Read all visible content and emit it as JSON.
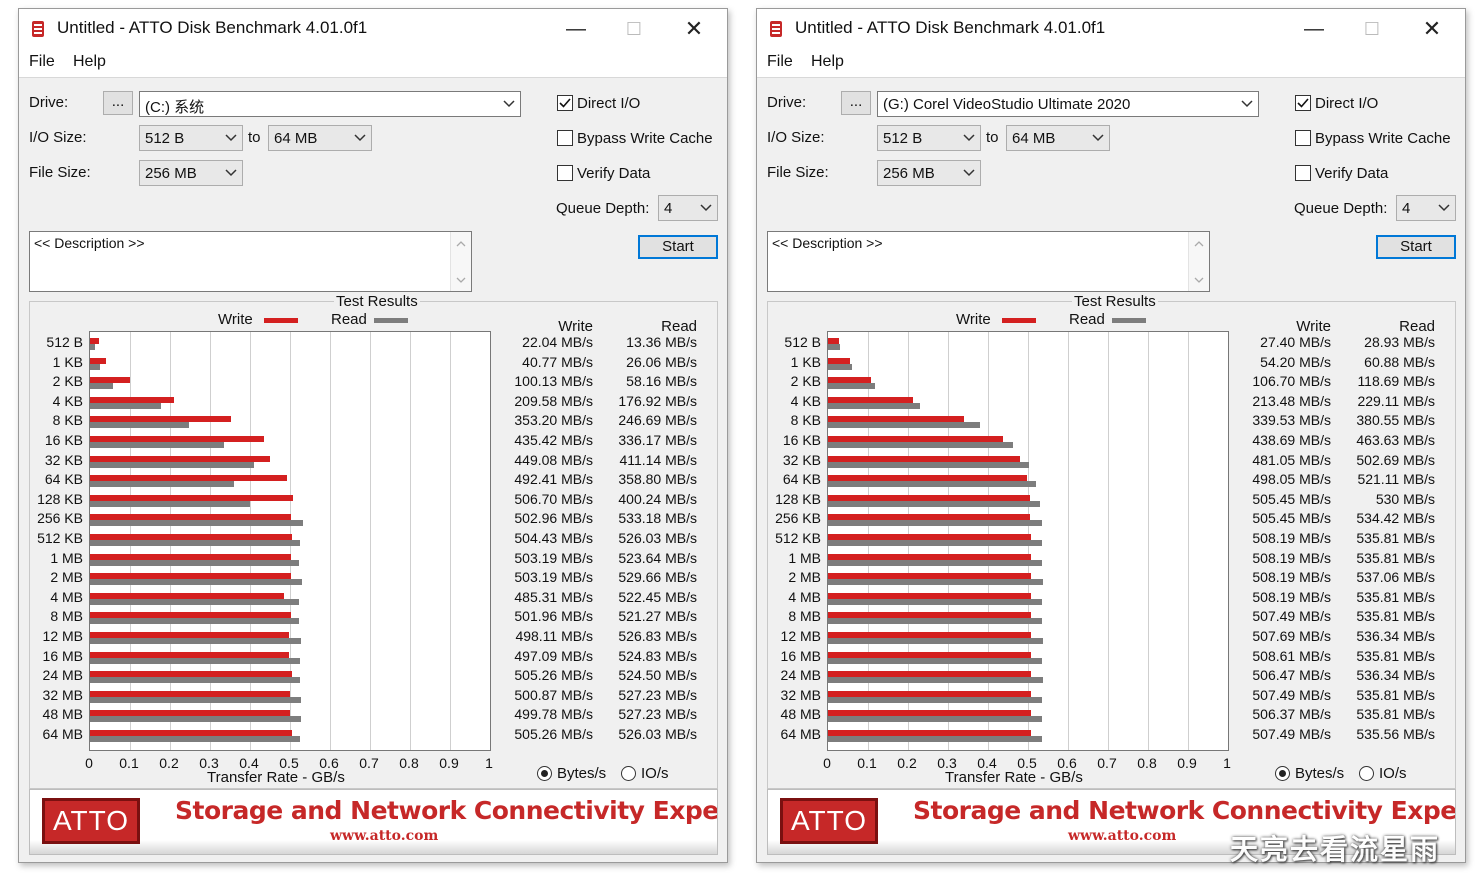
{
  "windows": [
    {
      "id": "left",
      "title": "Untitled - ATTO Disk Benchmark 4.01.0f1",
      "menu": [
        "File",
        "Help"
      ],
      "drive_label": "Drive:",
      "browse_label": "...",
      "drive_value": "(C:) 系统",
      "io_size_label": "I/O Size:",
      "io_from": "512 B",
      "to_label": "to",
      "io_to": "64 MB",
      "file_size_label": "File Size:",
      "file_size": "256 MB",
      "direct_io": "Direct I/O",
      "bypass_cache": "Bypass Write Cache",
      "verify_data": "Verify Data",
      "queue_depth_label": "Queue Depth:",
      "queue_depth": "4",
      "description": "<< Description >>",
      "start_label": "Start",
      "results_title": "Test Results",
      "legend_write": "Write",
      "legend_read": "Read",
      "col_write": "Write",
      "col_read": "Read",
      "x_label": "Transfer Rate - GB/s",
      "radio_bytes": "Bytes/s",
      "radio_io": "IO/s",
      "banner_logo": "ATTO",
      "banner_slogan": "Storage and Network Connectivity Experts",
      "banner_url": "www.atto.com",
      "chart_data": {
        "type": "bar",
        "orientation": "horizontal",
        "title": "Test Results",
        "xlabel": "Transfer Rate - GB/s",
        "xlim": [
          0,
          1
        ],
        "xticks": [
          "0",
          "0.1",
          "0.2",
          "0.3",
          "0.4",
          "0.5",
          "0.6",
          "0.7",
          "0.8",
          "0.9",
          "1"
        ],
        "categories": [
          "512 B",
          "1 KB",
          "2 KB",
          "4 KB",
          "8 KB",
          "16 KB",
          "32 KB",
          "64 KB",
          "128 KB",
          "256 KB",
          "512 KB",
          "1 MB",
          "2 MB",
          "4 MB",
          "8 MB",
          "12 MB",
          "16 MB",
          "24 MB",
          "32 MB",
          "48 MB",
          "64 MB"
        ],
        "series": [
          {
            "name": "Write",
            "color": "#d42020",
            "values_mbs": [
              22.04,
              40.77,
              100.13,
              209.58,
              353.2,
              435.42,
              449.08,
              492.41,
              506.7,
              502.96,
              504.43,
              503.19,
              503.19,
              485.31,
              501.96,
              498.11,
              497.09,
              505.26,
              500.87,
              499.78,
              505.26
            ]
          },
          {
            "name": "Read",
            "color": "#7d7d7d",
            "values_mbs": [
              13.36,
              26.06,
              58.16,
              176.92,
              246.69,
              336.17,
              411.14,
              358.8,
              400.24,
              533.18,
              526.03,
              523.64,
              529.66,
              522.45,
              521.27,
              526.83,
              524.83,
              524.5,
              527.23,
              527.23,
              526.03
            ]
          }
        ],
        "write_labels": [
          "22.04 MB/s",
          "40.77 MB/s",
          "100.13 MB/s",
          "209.58 MB/s",
          "353.20 MB/s",
          "435.42 MB/s",
          "449.08 MB/s",
          "492.41 MB/s",
          "506.70 MB/s",
          "502.96 MB/s",
          "504.43 MB/s",
          "503.19 MB/s",
          "503.19 MB/s",
          "485.31 MB/s",
          "501.96 MB/s",
          "498.11 MB/s",
          "497.09 MB/s",
          "505.26 MB/s",
          "500.87 MB/s",
          "499.78 MB/s",
          "505.26 MB/s"
        ],
        "read_labels": [
          "13.36 MB/s",
          "26.06 MB/s",
          "58.16 MB/s",
          "176.92 MB/s",
          "246.69 MB/s",
          "336.17 MB/s",
          "411.14 MB/s",
          "358.80 MB/s",
          "400.24 MB/s",
          "533.18 MB/s",
          "526.03 MB/s",
          "523.64 MB/s",
          "529.66 MB/s",
          "522.45 MB/s",
          "521.27 MB/s",
          "526.83 MB/s",
          "524.83 MB/s",
          "524.50 MB/s",
          "527.23 MB/s",
          "527.23 MB/s",
          "526.03 MB/s"
        ]
      }
    },
    {
      "id": "right",
      "title": "Untitled - ATTO Disk Benchmark 4.01.0f1",
      "menu": [
        "File",
        "Help"
      ],
      "drive_label": "Drive:",
      "browse_label": "...",
      "drive_value": "(G:) Corel VideoStudio Ultimate 2020",
      "io_size_label": "I/O Size:",
      "io_from": "512 B",
      "to_label": "to",
      "io_to": "64 MB",
      "file_size_label": "File Size:",
      "file_size": "256 MB",
      "direct_io": "Direct I/O",
      "bypass_cache": "Bypass Write Cache",
      "verify_data": "Verify Data",
      "queue_depth_label": "Queue Depth:",
      "queue_depth": "4",
      "description": "<< Description >>",
      "start_label": "Start",
      "results_title": "Test Results",
      "legend_write": "Write",
      "legend_read": "Read",
      "col_write": "Write",
      "col_read": "Read",
      "x_label": "Transfer Rate - GB/s",
      "radio_bytes": "Bytes/s",
      "radio_io": "IO/s",
      "banner_logo": "ATTO",
      "banner_slogan": "Storage and Network Connectivity Experts",
      "banner_url": "www.atto.com",
      "chart_data": {
        "type": "bar",
        "orientation": "horizontal",
        "title": "Test Results",
        "xlabel": "Transfer Rate - GB/s",
        "xlim": [
          0,
          1
        ],
        "xticks": [
          "0",
          "0.1",
          "0.2",
          "0.3",
          "0.4",
          "0.5",
          "0.6",
          "0.7",
          "0.8",
          "0.9",
          "1"
        ],
        "categories": [
          "512 B",
          "1 KB",
          "2 KB",
          "4 KB",
          "8 KB",
          "16 KB",
          "32 KB",
          "64 KB",
          "128 KB",
          "256 KB",
          "512 KB",
          "1 MB",
          "2 MB",
          "4 MB",
          "8 MB",
          "12 MB",
          "16 MB",
          "24 MB",
          "32 MB",
          "48 MB",
          "64 MB"
        ],
        "series": [
          {
            "name": "Write",
            "color": "#d42020",
            "values_mbs": [
              27.4,
              54.2,
              106.7,
              213.48,
              339.53,
              438.69,
              481.05,
              498.05,
              505.45,
              505.45,
              508.19,
              508.19,
              508.19,
              508.19,
              507.49,
              507.69,
              508.61,
              506.47,
              507.49,
              506.37,
              507.49
            ]
          },
          {
            "name": "Read",
            "color": "#7d7d7d",
            "values_mbs": [
              28.93,
              60.88,
              118.69,
              229.11,
              380.55,
              463.63,
              502.69,
              521.11,
              530,
              534.42,
              535.81,
              535.81,
              537.06,
              535.81,
              535.81,
              536.34,
              535.81,
              536.34,
              535.81,
              535.81,
              535.56
            ]
          }
        ],
        "write_labels": [
          "27.40 MB/s",
          "54.20 MB/s",
          "106.70 MB/s",
          "213.48 MB/s",
          "339.53 MB/s",
          "438.69 MB/s",
          "481.05 MB/s",
          "498.05 MB/s",
          "505.45 MB/s",
          "505.45 MB/s",
          "508.19 MB/s",
          "508.19 MB/s",
          "508.19 MB/s",
          "508.19 MB/s",
          "507.49 MB/s",
          "507.69 MB/s",
          "508.61 MB/s",
          "506.47 MB/s",
          "507.49 MB/s",
          "506.37 MB/s",
          "507.49 MB/s"
        ],
        "read_labels": [
          "28.93 MB/s",
          "60.88 MB/s",
          "118.69 MB/s",
          "229.11 MB/s",
          "380.55 MB/s",
          "463.63 MB/s",
          "502.69 MB/s",
          "521.11 MB/s",
          "530 MB/s",
          "534.42 MB/s",
          "535.81 MB/s",
          "535.81 MB/s",
          "537.06 MB/s",
          "535.81 MB/s",
          "535.81 MB/s",
          "536.34 MB/s",
          "535.81 MB/s",
          "536.34 MB/s",
          "535.81 MB/s",
          "535.81 MB/s",
          "535.56 MB/s"
        ]
      }
    }
  ],
  "watermark": "天亮去看流星雨"
}
